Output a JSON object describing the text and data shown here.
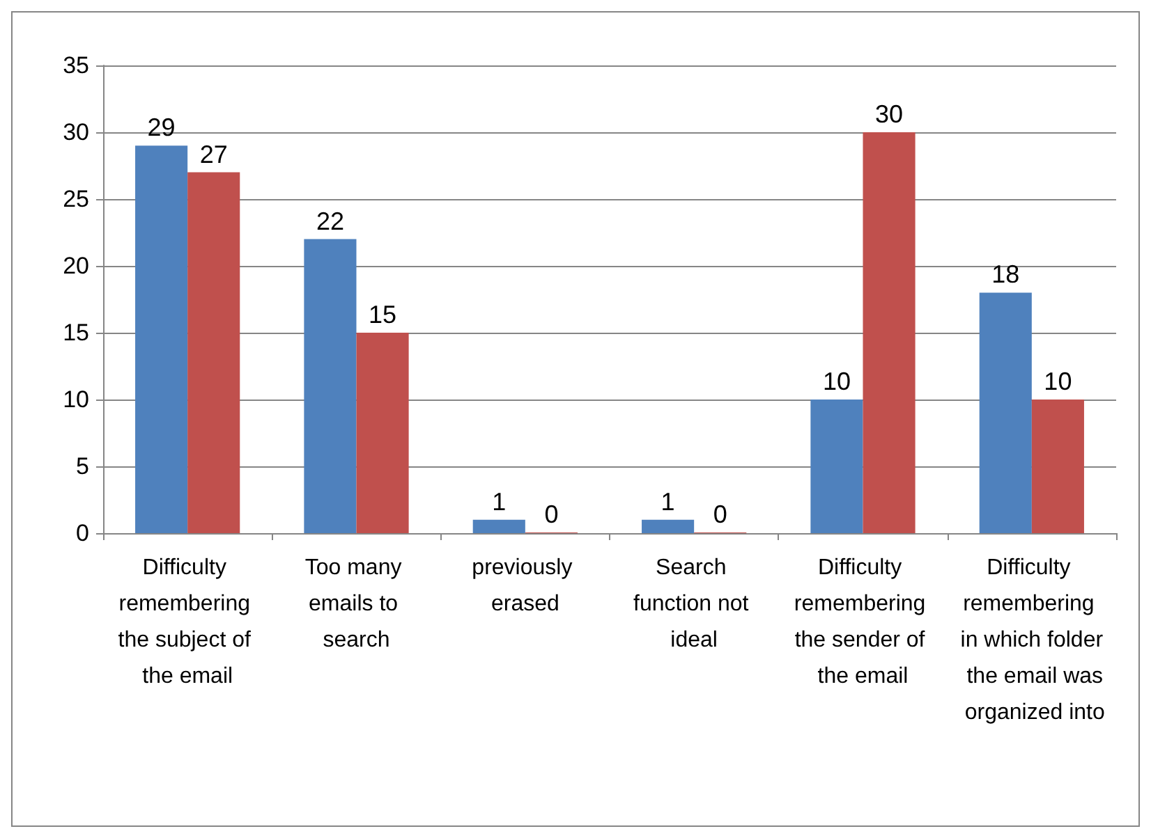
{
  "chart_data": {
    "type": "bar",
    "categories": [
      "Difficulty remembering the subject of the email",
      "Too many emails to search",
      "previously erased",
      "Search function not ideal",
      "Difficulty remembering the sender of the email",
      "Difficulty remembering in which folder the email was organized into"
    ],
    "series": [
      {
        "color": "#4f81bd",
        "values": [
          29,
          22,
          1,
          1,
          10,
          18
        ]
      },
      {
        "color": "#c0504d",
        "values": [
          27,
          15,
          0,
          0,
          30,
          10
        ]
      }
    ],
    "ylim": [
      0,
      35
    ],
    "yticks": [
      0,
      5,
      10,
      15,
      20,
      25,
      30,
      35
    ],
    "grid": "y",
    "data_labels": true
  }
}
